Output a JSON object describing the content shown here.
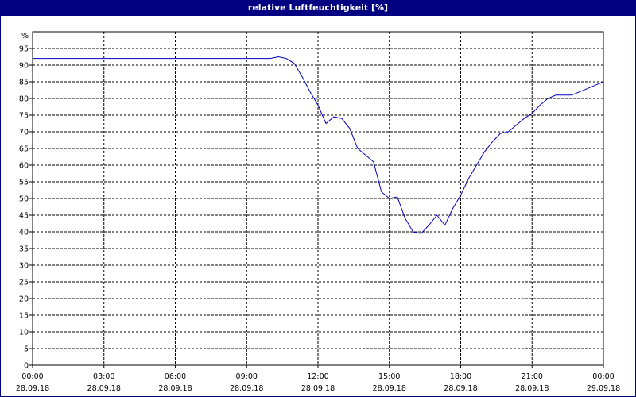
{
  "chart_data": {
    "type": "line",
    "title": "relative Luftfeuchtigkeit [%]",
    "ylabel": "%",
    "ylim": [
      0,
      100
    ],
    "y_ticks": [
      0,
      5,
      10,
      15,
      20,
      25,
      30,
      35,
      40,
      45,
      50,
      55,
      60,
      65,
      70,
      75,
      80,
      85,
      90,
      95
    ],
    "xlim_hours": [
      0,
      24
    ],
    "x_ticks": [
      {
        "time": "00:00",
        "date": "28.09.18"
      },
      {
        "time": "03:00",
        "date": "28.09.18"
      },
      {
        "time": "06:00",
        "date": "28.09.18"
      },
      {
        "time": "09:00",
        "date": "28.09.18"
      },
      {
        "time": "12:00",
        "date": "28.09.18"
      },
      {
        "time": "15:00",
        "date": "28.09.18"
      },
      {
        "time": "18:00",
        "date": "28.09.18"
      },
      {
        "time": "21:00",
        "date": "28.09.18"
      },
      {
        "time": "00:00",
        "date": "29.09.18"
      }
    ],
    "grid": true,
    "line_color": "#0000cc",
    "series": [
      {
        "x": [
          "00:00",
          "01:00",
          "02:00",
          "03:00",
          "04:00",
          "05:00",
          "06:00",
          "07:00",
          "08:00",
          "09:00",
          "10:00",
          "10:20",
          "10:40",
          "11:00",
          "11:20",
          "11:40",
          "12:00",
          "12:20",
          "12:40",
          "13:00",
          "13:20",
          "13:40",
          "14:00",
          "14:20",
          "14:40",
          "15:00",
          "15:20",
          "15:40",
          "16:00",
          "16:20",
          "16:40",
          "17:00",
          "17:20",
          "17:40",
          "18:00",
          "18:20",
          "18:40",
          "19:00",
          "19:20",
          "19:40",
          "20:00",
          "20:20",
          "20:40",
          "21:00",
          "21:20",
          "21:40",
          "22:00",
          "22:20",
          "22:40",
          "23:00",
          "23:20",
          "23:40",
          "24:00"
        ],
        "values": [
          92,
          92,
          92,
          92,
          92,
          92,
          92,
          92,
          92,
          92,
          92,
          92.5,
          92,
          90.5,
          86.5,
          82,
          78,
          72.5,
          74.5,
          74,
          71,
          65,
          63,
          61,
          52,
          50,
          50.5,
          44,
          40,
          39.5,
          42,
          45,
          42,
          47,
          51,
          56,
          60,
          64,
          67,
          69.5,
          70,
          72,
          74,
          75.5,
          78,
          80,
          81,
          81,
          81,
          82,
          83,
          84,
          85
        ]
      }
    ]
  }
}
